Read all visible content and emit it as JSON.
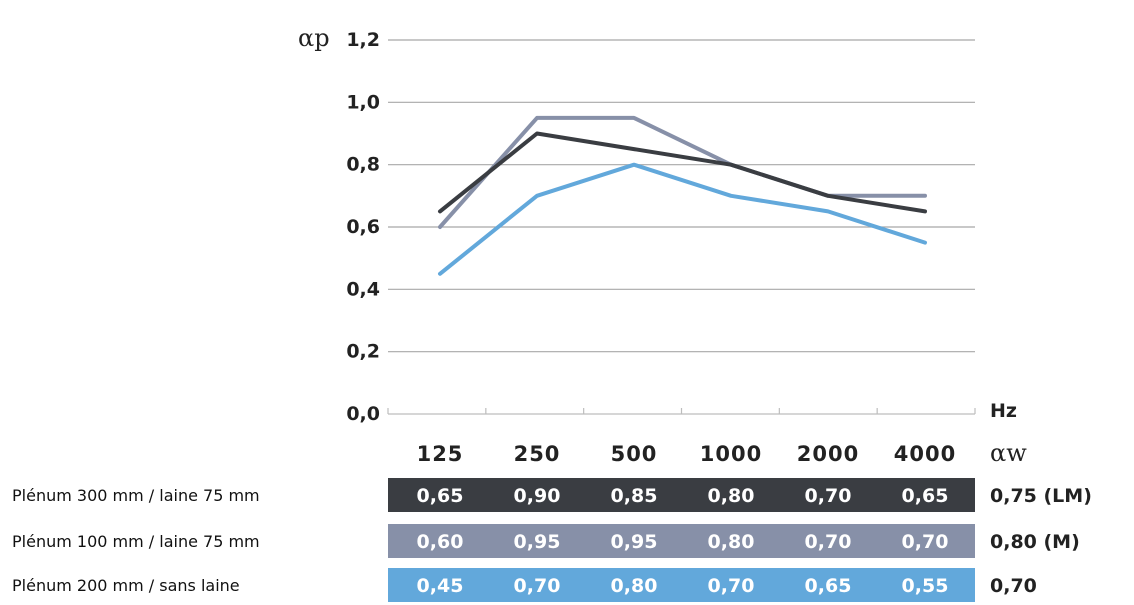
{
  "chart_data": {
    "type": "line",
    "y_symbol": "αp",
    "x_unit": "Hz",
    "aw_header": "αw",
    "categories": [
      "125",
      "250",
      "500",
      "1000",
      "2000",
      "4000"
    ],
    "yticks": [
      "0,0",
      "0,2",
      "0,4",
      "0,6",
      "0,8",
      "1,0",
      "1,2"
    ],
    "ylim": [
      0,
      1.2
    ],
    "grid": true,
    "series": [
      {
        "name": "Plénum 300 mm / laine 75 mm",
        "color": "#3a3d42",
        "values": [
          0.65,
          0.9,
          0.85,
          0.8,
          0.7,
          0.65
        ],
        "labels": [
          "0,65",
          "0,90",
          "0,85",
          "0,80",
          "0,70",
          "0,65"
        ],
        "aw": "0,75 (LM)"
      },
      {
        "name": "Plénum 100 mm / laine 75 mm",
        "color": "#8790a8",
        "values": [
          0.6,
          0.95,
          0.95,
          0.8,
          0.7,
          0.7
        ],
        "labels": [
          "0,60",
          "0,95",
          "0,95",
          "0,80",
          "0,70",
          "0,70"
        ],
        "aw": "0,80 (M)"
      },
      {
        "name": "Plénum 200 mm / sans laine",
        "color": "#62a8db",
        "values": [
          0.45,
          0.7,
          0.8,
          0.7,
          0.65,
          0.55
        ],
        "labels": [
          "0,45",
          "0,70",
          "0,80",
          "0,70",
          "0,65",
          "0,55"
        ],
        "aw": "0,70"
      }
    ]
  }
}
